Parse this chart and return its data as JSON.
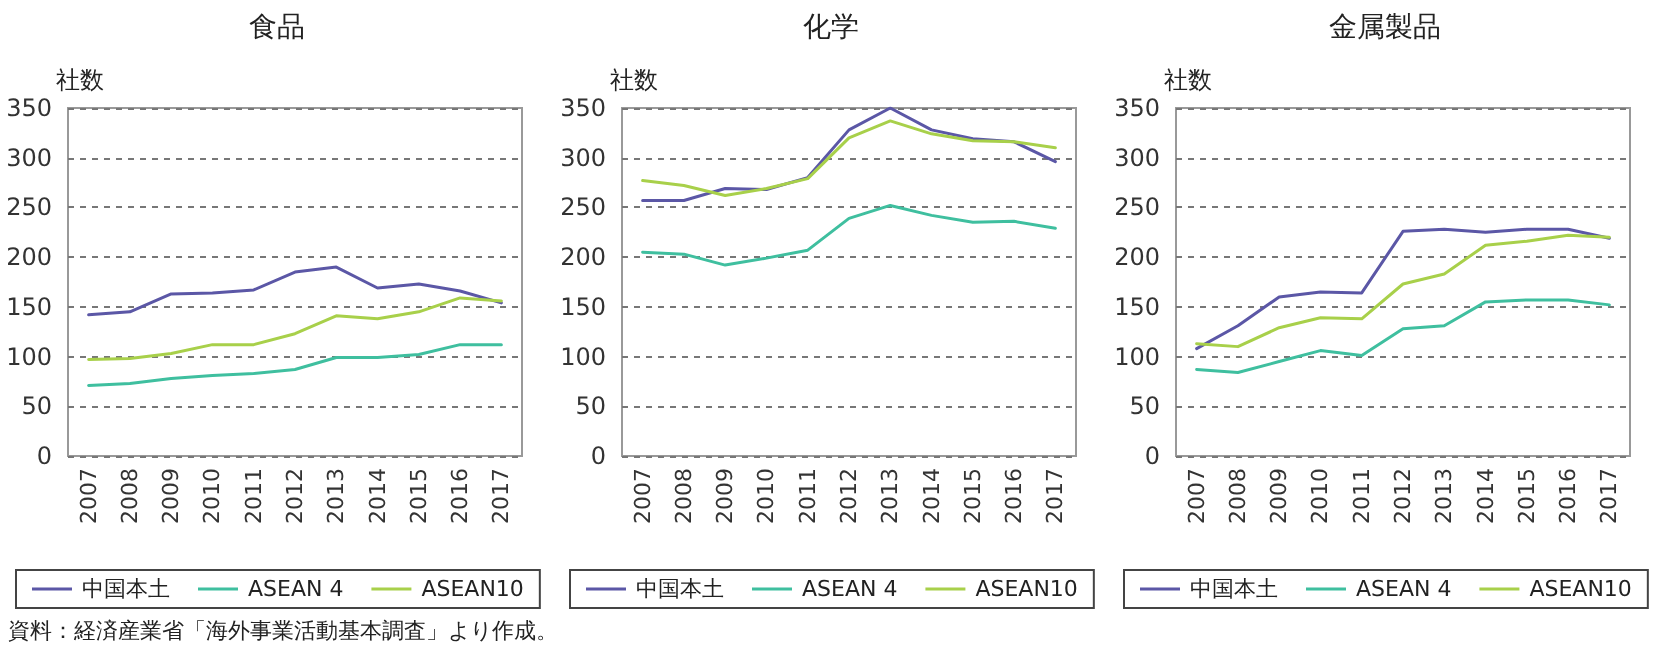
{
  "chart_data": [
    {
      "type": "line",
      "title": "食品",
      "ylabel": "社数",
      "categories": [
        "2007",
        "2008",
        "2009",
        "2010",
        "2011",
        "2012",
        "2013",
        "2014",
        "2015",
        "2016",
        "2017"
      ],
      "ylim": [
        0,
        350
      ],
      "yticks": [
        0,
        50,
        100,
        150,
        200,
        250,
        300,
        350
      ],
      "grid": "y",
      "legend": "bottom",
      "marker": "none",
      "line_style": "solid",
      "series": [
        {
          "name": "中国本土",
          "color": "#5b57a6",
          "values": [
            142,
            145,
            163,
            164,
            167,
            185,
            190,
            169,
            173,
            166,
            154
          ]
        },
        {
          "name": "ASEAN 4",
          "color": "#3fbf9f",
          "values": [
            71,
            73,
            78,
            81,
            83,
            87,
            99,
            99,
            102,
            112,
            112
          ]
        },
        {
          "name": "ASEAN10",
          "color": "#a8d04a",
          "values": [
            97,
            98,
            103,
            112,
            112,
            123,
            141,
            138,
            145,
            159,
            156
          ]
        }
      ],
      "annotations": [
        "資料：経済産業省「海外事業活動基本調査」より作成。"
      ]
    },
    {
      "type": "line",
      "title": "化学",
      "ylabel": "社数",
      "categories": [
        "2007",
        "2008",
        "2009",
        "2010",
        "2011",
        "2012",
        "2013",
        "2014",
        "2015",
        "2016",
        "2017"
      ],
      "ylim": [
        0,
        350
      ],
      "yticks": [
        0,
        50,
        100,
        150,
        200,
        250,
        300,
        350
      ],
      "grid": "y",
      "legend": "bottom",
      "marker": "none",
      "line_style": "solid",
      "series": [
        {
          "name": "中国本土",
          "color": "#5b57a6",
          "values": [
            257,
            257,
            269,
            268,
            280,
            328,
            350,
            328,
            319,
            316,
            296
          ]
        },
        {
          "name": "ASEAN 4",
          "color": "#3fbf9f",
          "values": [
            205,
            203,
            192,
            199,
            207,
            239,
            252,
            242,
            235,
            236,
            229
          ]
        },
        {
          "name": "ASEAN10",
          "color": "#a8d04a",
          "values": [
            277,
            272,
            262,
            269,
            279,
            320,
            337,
            324,
            317,
            316,
            310
          ]
        }
      ]
    },
    {
      "type": "line",
      "title": "金属製品",
      "ylabel": "社数",
      "categories": [
        "2007",
        "2008",
        "2009",
        "2010",
        "2011",
        "2012",
        "2013",
        "2014",
        "2015",
        "2016",
        "2017"
      ],
      "ylim": [
        0,
        350
      ],
      "yticks": [
        0,
        50,
        100,
        150,
        200,
        250,
        300,
        350
      ],
      "grid": "y",
      "legend": "bottom",
      "marker": "none",
      "line_style": "solid",
      "series": [
        {
          "name": "中国本土",
          "color": "#5b57a6",
          "values": [
            108,
            131,
            160,
            165,
            164,
            226,
            228,
            225,
            228,
            228,
            219
          ]
        },
        {
          "name": "ASEAN 4",
          "color": "#3fbf9f",
          "values": [
            87,
            84,
            95,
            106,
            101,
            128,
            131,
            155,
            157,
            157,
            152
          ]
        },
        {
          "name": "ASEAN10",
          "color": "#a8d04a",
          "values": [
            113,
            110,
            129,
            139,
            138,
            173,
            183,
            212,
            216,
            222,
            220
          ]
        }
      ]
    }
  ]
}
